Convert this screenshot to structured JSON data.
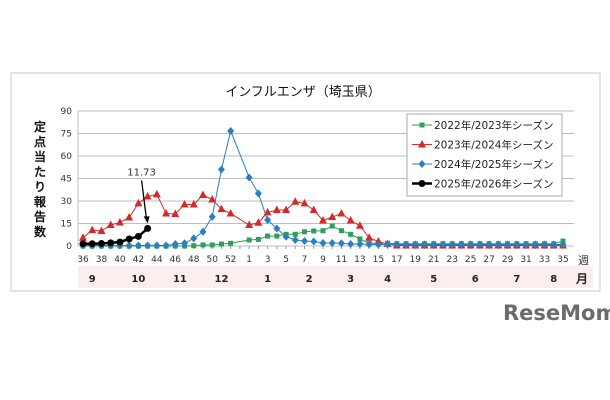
{
  "chart_data": {
    "type": "line",
    "title": "インフルエンザ（埼玉県）",
    "ylabel": "定点当たり報告数",
    "xlabel_unit": "週",
    "month_unit": "月",
    "ylim": [
      0,
      90
    ],
    "yticks": [
      0,
      15,
      30,
      45,
      60,
      75,
      90
    ],
    "grid": true,
    "legend_position": "top-right",
    "weeks": [
      "36",
      "37",
      "38",
      "39",
      "40",
      "41",
      "42",
      "43",
      "44",
      "45",
      "46",
      "47",
      "48",
      "49",
      "50",
      "51",
      "52",
      "53",
      "1",
      "2",
      "3",
      "4",
      "5",
      "6",
      "7",
      "8",
      "9",
      "10",
      "11",
      "12",
      "13",
      "14",
      "15",
      "16",
      "17",
      "18",
      "19",
      "20",
      "21",
      "22",
      "23",
      "24",
      "25",
      "26",
      "27",
      "28",
      "29",
      "30",
      "31",
      "32",
      "33",
      "34",
      "35"
    ],
    "xtick_labels": [
      "36",
      "38",
      "40",
      "42",
      "44",
      "46",
      "48",
      "50",
      "52",
      "1",
      "3",
      "5",
      "7",
      "9",
      "11",
      "13",
      "15",
      "17",
      "19",
      "21",
      "23",
      "25",
      "27",
      "29",
      "31",
      "33",
      "35"
    ],
    "months": [
      "9",
      "10",
      "11",
      "12",
      "1",
      "2",
      "3",
      "4",
      "5",
      "6",
      "7",
      "8"
    ],
    "series": [
      {
        "name": "2022年/2023年シーズン",
        "color": "#2e9e5b",
        "marker": "square",
        "values": [
          0,
          0,
          0,
          0,
          0,
          0,
          0,
          0,
          0,
          0,
          0,
          0,
          0.2,
          0.7,
          0.7,
          1.3,
          1.8,
          null,
          4,
          4.4,
          6.6,
          6.6,
          7.8,
          7.8,
          9.5,
          10,
          10.2,
          13.3,
          10.2,
          7.8,
          4.7,
          1.8,
          1.8,
          1.8,
          1.5,
          1.5,
          1.5,
          1.5,
          1.5,
          1.5,
          1.5,
          1.5,
          1.5,
          1.5,
          1.5,
          1.5,
          1.5,
          1.5,
          1.5,
          1.5,
          1.5,
          1.5,
          3.3
        ]
      },
      {
        "name": "2023年/2024年シーズン",
        "color": "#d42a2a",
        "marker": "triangle",
        "values": [
          5.5,
          10.6,
          10,
          14,
          15.7,
          19,
          28.4,
          33,
          34.4,
          21.7,
          21.3,
          27.7,
          27.7,
          34,
          31,
          24.6,
          21.7,
          null,
          14,
          15.5,
          22.4,
          24,
          24,
          29.5,
          28.4,
          24,
          17,
          19.3,
          21.7,
          17,
          13.5,
          5.5,
          3,
          1.3,
          0.3,
          0.3,
          0.3,
          0.3,
          0.3,
          0.3,
          0.3,
          0.3,
          0.3,
          0.3,
          0.3,
          0.3,
          0.3,
          0.3,
          0.3,
          0.3,
          0.3,
          0.3,
          0.3
        ]
      },
      {
        "name": "2024年/2025年シーズン",
        "color": "#2b7fc0",
        "marker": "diamond",
        "values": [
          0.3,
          0.3,
          0.3,
          0.3,
          0.3,
          0.3,
          0.3,
          0.3,
          0.3,
          0.3,
          1.3,
          1.8,
          5.1,
          9.5,
          19.5,
          51,
          76.7,
          null,
          45.7,
          35,
          17.3,
          11.7,
          6.2,
          4,
          3.3,
          3,
          2,
          2,
          1.8,
          1.3,
          1.3,
          1,
          1,
          1,
          1,
          1,
          1,
          1,
          1,
          1,
          1,
          1,
          1,
          1,
          1,
          1,
          1,
          1,
          1,
          1,
          1,
          1,
          1
        ]
      },
      {
        "name": "2025年/2026年シーズン",
        "color": "#000000",
        "marker": "circle",
        "values": [
          1.5,
          1.5,
          1.7,
          2.1,
          2.6,
          4.7,
          6.4,
          11.73
        ]
      }
    ],
    "annotations": [
      {
        "text": "11.73",
        "week": "43",
        "value": 11.73
      }
    ]
  },
  "watermark": "ReseMom"
}
